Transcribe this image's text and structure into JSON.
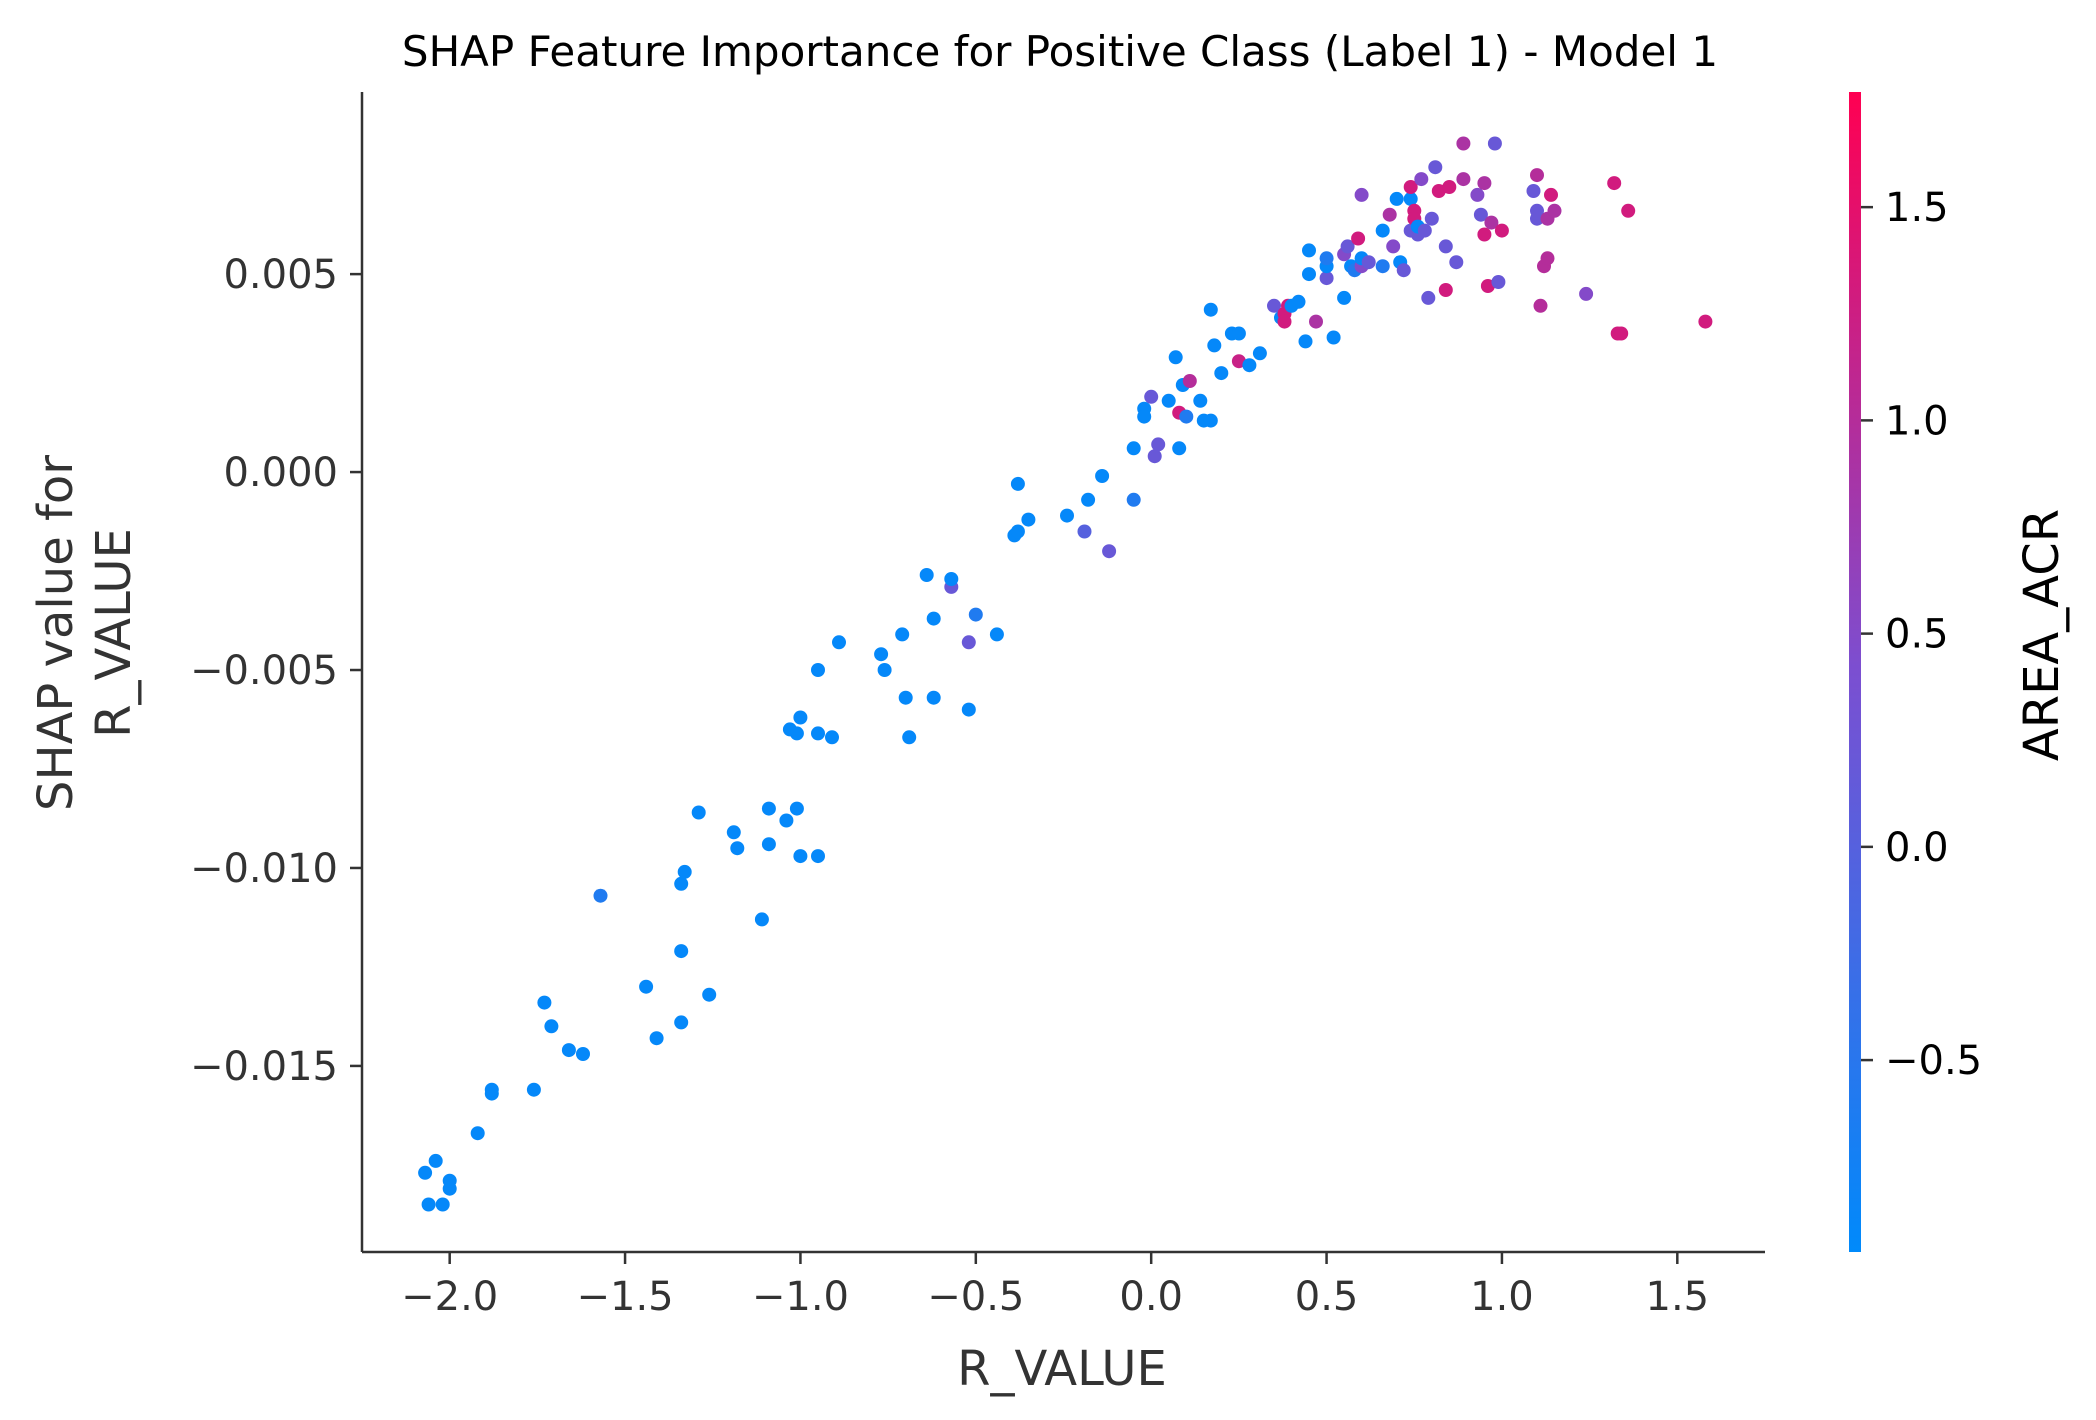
{
  "chart_data": {
    "type": "scatter",
    "title": "SHAP Feature Importance for Positive Class (Label 1) - Model 1",
    "xlabel": "R_VALUE",
    "ylabel_lines": [
      "SHAP value for",
      "R_VALUE"
    ],
    "xlim": [
      -2.25,
      1.75
    ],
    "ylim": [
      -0.0197,
      0.0096
    ],
    "x_ticks": [
      -2.0,
      -1.5,
      -1.0,
      -0.5,
      0.0,
      0.5,
      1.0,
      1.5
    ],
    "x_tick_labels": [
      "−2.0",
      "−1.5",
      "−1.0",
      "−0.5",
      "0.0",
      "0.5",
      "1.0",
      "1.5"
    ],
    "y_ticks": [
      -0.015,
      -0.01,
      -0.005,
      0.0,
      0.005
    ],
    "y_tick_labels": [
      "−0.015",
      "−0.010",
      "−0.005",
      "0.000",
      "0.005"
    ],
    "grid": false,
    "colorbar": {
      "label": "AREA_ACR",
      "range": [
        -0.95,
        1.77
      ],
      "ticks": [
        -0.5,
        0.0,
        0.5,
        1.0,
        1.5
      ],
      "tick_labels": [
        "−0.5",
        "0.0",
        "0.5",
        "1.0",
        "1.5"
      ],
      "colors": [
        "#008afb",
        "#7b4fd1",
        "#ff0052"
      ]
    },
    "points": [
      [
        -2.07,
        -0.0177,
        -0.9
      ],
      [
        -2.04,
        -0.0174,
        -0.9
      ],
      [
        -2.06,
        -0.0185,
        -0.9
      ],
      [
        -2.02,
        -0.0185,
        -0.9
      ],
      [
        -2.0,
        -0.0181,
        -0.9
      ],
      [
        -2.0,
        -0.0179,
        -0.9
      ],
      [
        -1.92,
        -0.0167,
        -0.9
      ],
      [
        -1.88,
        -0.0157,
        -0.9
      ],
      [
        -1.88,
        -0.0156,
        -0.9
      ],
      [
        -1.76,
        -0.0156,
        -0.9
      ],
      [
        -1.73,
        -0.0134,
        -0.9
      ],
      [
        -1.71,
        -0.014,
        -0.9
      ],
      [
        -1.66,
        -0.0146,
        -0.9
      ],
      [
        -1.62,
        -0.0147,
        -0.9
      ],
      [
        -1.57,
        -0.0107,
        -0.6
      ],
      [
        -1.44,
        -0.013,
        -0.9
      ],
      [
        -1.41,
        -0.0143,
        -0.9
      ],
      [
        -1.34,
        -0.0121,
        -0.9
      ],
      [
        -1.34,
        -0.0139,
        -0.9
      ],
      [
        -1.34,
        -0.0104,
        -0.9
      ],
      [
        -1.33,
        -0.0101,
        -0.9
      ],
      [
        -1.29,
        -0.0086,
        -0.9
      ],
      [
        -1.26,
        -0.0132,
        -0.9
      ],
      [
        -1.19,
        -0.0091,
        -0.9
      ],
      [
        -1.18,
        -0.0095,
        -0.9
      ],
      [
        -1.11,
        -0.0113,
        -0.9
      ],
      [
        -1.09,
        -0.0085,
        -0.9
      ],
      [
        -1.09,
        -0.0094,
        -0.9
      ],
      [
        -1.04,
        -0.0088,
        -0.9
      ],
      [
        -1.03,
        -0.0065,
        -0.9
      ],
      [
        -1.01,
        -0.0085,
        -0.9
      ],
      [
        -1.01,
        -0.0066,
        -0.9
      ],
      [
        -1.0,
        -0.0097,
        -0.9
      ],
      [
        -1.0,
        -0.0062,
        -0.9
      ],
      [
        -0.95,
        -0.0097,
        -0.9
      ],
      [
        -0.95,
        -0.005,
        -0.9
      ],
      [
        -0.95,
        -0.0066,
        -0.9
      ],
      [
        -0.91,
        -0.0067,
        -0.9
      ],
      [
        -0.89,
        -0.0043,
        -0.9
      ],
      [
        -0.77,
        -0.0046,
        -0.9
      ],
      [
        -0.76,
        -0.005,
        -0.9
      ],
      [
        -0.71,
        -0.0041,
        -0.9
      ],
      [
        -0.7,
        -0.0057,
        -0.9
      ],
      [
        -0.69,
        -0.0067,
        -0.9
      ],
      [
        -0.64,
        -0.0026,
        -0.9
      ],
      [
        -0.62,
        -0.0057,
        -0.9
      ],
      [
        -0.62,
        -0.0037,
        -0.9
      ],
      [
        -0.57,
        -0.0029,
        0.2
      ],
      [
        -0.57,
        -0.0027,
        -0.9
      ],
      [
        -0.52,
        -0.006,
        -0.9
      ],
      [
        -0.52,
        -0.0043,
        0.2
      ],
      [
        -0.5,
        -0.0036,
        -0.6
      ],
      [
        -0.44,
        -0.0041,
        -0.9
      ],
      [
        -0.39,
        -0.0016,
        -0.9
      ],
      [
        -0.38,
        -0.0003,
        -0.9
      ],
      [
        -0.38,
        -0.0015,
        -0.9
      ],
      [
        -0.35,
        -0.0012,
        -0.9
      ],
      [
        -0.24,
        -0.0011,
        -0.9
      ],
      [
        -0.19,
        -0.0015,
        0.0
      ],
      [
        -0.18,
        -0.0007,
        -0.9
      ],
      [
        -0.14,
        -0.0001,
        -0.9
      ],
      [
        -0.12,
        -0.002,
        0.2
      ],
      [
        -0.05,
        -0.0007,
        -0.6
      ],
      [
        -0.05,
        0.0006,
        -0.9
      ],
      [
        -0.02,
        0.0016,
        -0.9
      ],
      [
        -0.02,
        0.0014,
        -0.9
      ],
      [
        0.0,
        0.0019,
        0.2
      ],
      [
        0.01,
        0.0004,
        0.2
      ],
      [
        0.02,
        0.0007,
        0.2
      ],
      [
        0.05,
        0.0018,
        -0.9
      ],
      [
        0.07,
        0.0029,
        -0.9
      ],
      [
        0.08,
        0.0015,
        1.3
      ],
      [
        0.08,
        0.0006,
        -0.9
      ],
      [
        0.09,
        0.0022,
        -0.9
      ],
      [
        0.1,
        0.0014,
        -0.6
      ],
      [
        0.11,
        0.0023,
        1.0
      ],
      [
        0.14,
        0.0018,
        -0.9
      ],
      [
        0.15,
        0.0013,
        -0.9
      ],
      [
        0.17,
        0.0013,
        -0.9
      ],
      [
        0.17,
        0.0041,
        -0.9
      ],
      [
        0.18,
        0.0032,
        -0.9
      ],
      [
        0.2,
        0.0025,
        -0.9
      ],
      [
        0.23,
        0.0035,
        -0.9
      ],
      [
        0.25,
        0.0035,
        -0.9
      ],
      [
        0.25,
        0.0028,
        1.2
      ],
      [
        0.28,
        0.0027,
        -0.9
      ],
      [
        0.31,
        0.003,
        -0.9
      ],
      [
        0.35,
        0.0042,
        0.2
      ],
      [
        0.37,
        0.0039,
        -0.9
      ],
      [
        0.38,
        0.004,
        1.3
      ],
      [
        0.38,
        0.0038,
        1.3
      ],
      [
        0.39,
        0.0042,
        1.3
      ],
      [
        0.4,
        0.0042,
        -0.9
      ],
      [
        0.42,
        0.0043,
        -0.9
      ],
      [
        0.44,
        0.0033,
        -0.9
      ],
      [
        0.45,
        0.005,
        -0.9
      ],
      [
        0.45,
        0.0056,
        -0.9
      ],
      [
        0.47,
        0.0038,
        0.9
      ],
      [
        0.5,
        0.0049,
        0.2
      ],
      [
        0.5,
        0.0052,
        -0.9
      ],
      [
        0.5,
        0.0054,
        -0.6
      ],
      [
        0.52,
        0.0034,
        -0.9
      ],
      [
        0.55,
        0.0044,
        -0.9
      ],
      [
        0.55,
        0.0055,
        0.5
      ],
      [
        0.56,
        0.0057,
        0.2
      ],
      [
        0.57,
        0.0052,
        -0.9
      ],
      [
        0.58,
        0.0051,
        -0.6
      ],
      [
        0.59,
        0.0059,
        1.3
      ],
      [
        0.6,
        0.007,
        0.5
      ],
      [
        0.6,
        0.0052,
        0.5
      ],
      [
        0.6,
        0.0054,
        -0.9
      ],
      [
        0.62,
        0.0053,
        0.2
      ],
      [
        0.66,
        0.0061,
        -0.9
      ],
      [
        0.66,
        0.0052,
        -0.6
      ],
      [
        0.68,
        0.0065,
        0.9
      ],
      [
        0.69,
        0.0057,
        0.5
      ],
      [
        0.7,
        0.0069,
        -0.9
      ],
      [
        0.71,
        0.0053,
        -0.9
      ],
      [
        0.72,
        0.0051,
        0.2
      ],
      [
        0.74,
        0.0061,
        0.2
      ],
      [
        0.74,
        0.0069,
        -0.9
      ],
      [
        0.74,
        0.0072,
        1.3
      ],
      [
        0.75,
        0.0066,
        1.3
      ],
      [
        0.75,
        0.0064,
        1.3
      ],
      [
        0.76,
        0.006,
        0.2
      ],
      [
        0.76,
        0.0062,
        -0.9
      ],
      [
        0.77,
        0.0074,
        0.5
      ],
      [
        0.78,
        0.0061,
        0.2
      ],
      [
        0.79,
        0.0044,
        0.2
      ],
      [
        0.8,
        0.0064,
        0.2
      ],
      [
        0.81,
        0.0077,
        0.2
      ],
      [
        0.82,
        0.0071,
        1.3
      ],
      [
        0.84,
        0.0057,
        0.2
      ],
      [
        0.84,
        0.0046,
        1.3
      ],
      [
        0.85,
        0.0072,
        1.3
      ],
      [
        0.87,
        0.0053,
        0.2
      ],
      [
        0.89,
        0.0083,
        0.9
      ],
      [
        0.89,
        0.0074,
        0.9
      ],
      [
        0.93,
        0.007,
        0.5
      ],
      [
        0.94,
        0.0065,
        0.2
      ],
      [
        0.95,
        0.006,
        1.3
      ],
      [
        0.95,
        0.0073,
        0.9
      ],
      [
        0.96,
        0.0047,
        1.3
      ],
      [
        0.97,
        0.0063,
        0.9
      ],
      [
        0.98,
        0.0083,
        0.2
      ],
      [
        0.99,
        0.0048,
        0.2
      ],
      [
        1.0,
        0.0061,
        1.3
      ],
      [
        1.09,
        0.0071,
        0.2
      ],
      [
        1.1,
        0.0075,
        1.0
      ],
      [
        1.1,
        0.0066,
        0.2
      ],
      [
        1.1,
        0.0064,
        0.2
      ],
      [
        1.11,
        0.0042,
        1.0
      ],
      [
        1.12,
        0.0052,
        1.0
      ],
      [
        1.13,
        0.0054,
        1.0
      ],
      [
        1.13,
        0.0064,
        0.9
      ],
      [
        1.14,
        0.007,
        1.3
      ],
      [
        1.15,
        0.0066,
        0.9
      ],
      [
        1.24,
        0.0045,
        0.5
      ],
      [
        1.32,
        0.0073,
        1.3
      ],
      [
        1.33,
        0.0035,
        1.3
      ],
      [
        1.34,
        0.0035,
        1.3
      ],
      [
        1.36,
        0.0066,
        1.3
      ],
      [
        1.58,
        0.0038,
        1.3
      ]
    ]
  }
}
